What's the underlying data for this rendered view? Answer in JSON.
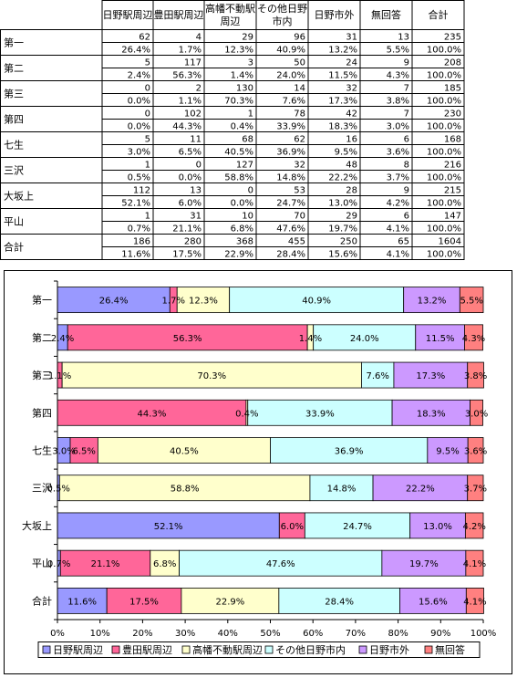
{
  "table": {
    "headers": [
      "日野駅周辺",
      "豊田駅周辺",
      "高幡不動駅周辺",
      "その他日野市内",
      "日野市外",
      "無回答",
      "合計"
    ],
    "rows": [
      {
        "label": "第一",
        "counts": [
          "62",
          "4",
          "29",
          "96",
          "31",
          "13",
          "235"
        ],
        "pcts": [
          "26.4%",
          "1.7%",
          "12.3%",
          "40.9%",
          "13.2%",
          "5.5%",
          "100.0%"
        ]
      },
      {
        "label": "第二",
        "counts": [
          "5",
          "117",
          "3",
          "50",
          "24",
          "9",
          "208"
        ],
        "pcts": [
          "2.4%",
          "56.3%",
          "1.4%",
          "24.0%",
          "11.5%",
          "4.3%",
          "100.0%"
        ]
      },
      {
        "label": "第三",
        "counts": [
          "0",
          "2",
          "130",
          "14",
          "32",
          "7",
          "185"
        ],
        "pcts": [
          "0.0%",
          "1.1%",
          "70.3%",
          "7.6%",
          "17.3%",
          "3.8%",
          "100.0%"
        ]
      },
      {
        "label": "第四",
        "counts": [
          "0",
          "102",
          "1",
          "78",
          "42",
          "7",
          "230"
        ],
        "pcts": [
          "0.0%",
          "44.3%",
          "0.4%",
          "33.9%",
          "18.3%",
          "3.0%",
          "100.0%"
        ]
      },
      {
        "label": "七生",
        "counts": [
          "5",
          "11",
          "68",
          "62",
          "16",
          "6",
          "168"
        ],
        "pcts": [
          "3.0%",
          "6.5%",
          "40.5%",
          "36.9%",
          "9.5%",
          "3.6%",
          "100.0%"
        ]
      },
      {
        "label": "三沢",
        "counts": [
          "1",
          "0",
          "127",
          "32",
          "48",
          "8",
          "216"
        ],
        "pcts": [
          "0.5%",
          "0.0%",
          "58.8%",
          "14.8%",
          "22.2%",
          "3.7%",
          "100.0%"
        ]
      },
      {
        "label": "大坂上",
        "counts": [
          "112",
          "13",
          "0",
          "53",
          "28",
          "9",
          "215"
        ],
        "pcts": [
          "52.1%",
          "6.0%",
          "0.0%",
          "24.7%",
          "13.0%",
          "4.2%",
          "100.0%"
        ]
      },
      {
        "label": "平山",
        "counts": [
          "1",
          "31",
          "10",
          "70",
          "29",
          "6",
          "147"
        ],
        "pcts": [
          "0.7%",
          "21.1%",
          "6.8%",
          "47.6%",
          "19.7%",
          "4.1%",
          "100.0%"
        ]
      },
      {
        "label": "合計",
        "counts": [
          "186",
          "280",
          "368",
          "455",
          "250",
          "65",
          "1604"
        ],
        "pcts": [
          "11.6%",
          "17.5%",
          "22.9%",
          "28.4%",
          "15.6%",
          "4.1%",
          "100.0%"
        ]
      }
    ]
  },
  "chart_data": {
    "type": "bar",
    "orientation": "horizontal",
    "stacked": "percent",
    "categories": [
      "第一",
      "第二",
      "第三",
      "第四",
      "七生",
      "三沢",
      "大坂上",
      "平山",
      "合計"
    ],
    "series": [
      {
        "name": "日野駅周辺",
        "color": "#9999FF",
        "values": [
          26.4,
          2.4,
          0.0,
          0.0,
          3.0,
          0.5,
          52.1,
          0.7,
          11.6
        ]
      },
      {
        "name": "豊田駅周辺",
        "color": "#FF6699",
        "values": [
          1.7,
          56.3,
          1.1,
          44.3,
          6.5,
          0.0,
          6.0,
          21.1,
          17.5
        ]
      },
      {
        "name": "高幡不動駅周辺",
        "color": "#FFFFCC",
        "values": [
          12.3,
          1.4,
          70.3,
          0.4,
          40.5,
          58.8,
          0.0,
          6.8,
          22.9
        ]
      },
      {
        "name": "その他日野市内",
        "color": "#CCFFFF",
        "values": [
          40.9,
          24.0,
          7.6,
          33.9,
          36.9,
          14.8,
          24.7,
          47.6,
          28.4
        ]
      },
      {
        "name": "日野市外",
        "color": "#CC99FF",
        "values": [
          13.2,
          11.5,
          17.3,
          18.3,
          9.5,
          22.2,
          13.0,
          19.7,
          15.6
        ]
      },
      {
        "name": "無回答",
        "color": "#FF8080",
        "values": [
          5.5,
          4.3,
          3.8,
          3.0,
          3.6,
          3.7,
          4.2,
          4.1,
          4.1
        ]
      }
    ],
    "data_labels": [
      [
        "26.4%",
        "1.7%",
        "12.3%",
        "40.9%",
        "13.2%",
        "5.5%"
      ],
      [
        "2.4%",
        "56.3%",
        "1.4%",
        "24.0%",
        "11.5%",
        "4.3%"
      ],
      [
        "",
        "1.1%",
        "70.3%",
        "7.6%",
        "17.3%",
        "3.8%"
      ],
      [
        "",
        "44.3%",
        "0.4%",
        "33.9%",
        "18.3%",
        "3.0%"
      ],
      [
        "3.0%",
        "6.5%",
        "40.5%",
        "36.9%",
        "9.5%",
        "3.6%"
      ],
      [
        "0.5%",
        "",
        "58.8%",
        "14.8%",
        "22.2%",
        "3.7%"
      ],
      [
        "52.1%",
        "6.0%",
        "",
        "24.7%",
        "13.0%",
        "4.2%"
      ],
      [
        "0.7%",
        "21.1%",
        "6.8%",
        "47.6%",
        "19.7%",
        "4.1%"
      ],
      [
        "11.6%",
        "17.5%",
        "22.9%",
        "28.4%",
        "15.6%",
        "4.1%"
      ]
    ],
    "x_ticks": [
      "0%",
      "10%",
      "20%",
      "30%",
      "40%",
      "50%",
      "60%",
      "70%",
      "80%",
      "90%",
      "100%"
    ],
    "xlim": [
      0,
      100
    ],
    "legend_position": "bottom",
    "grid": false
  }
}
